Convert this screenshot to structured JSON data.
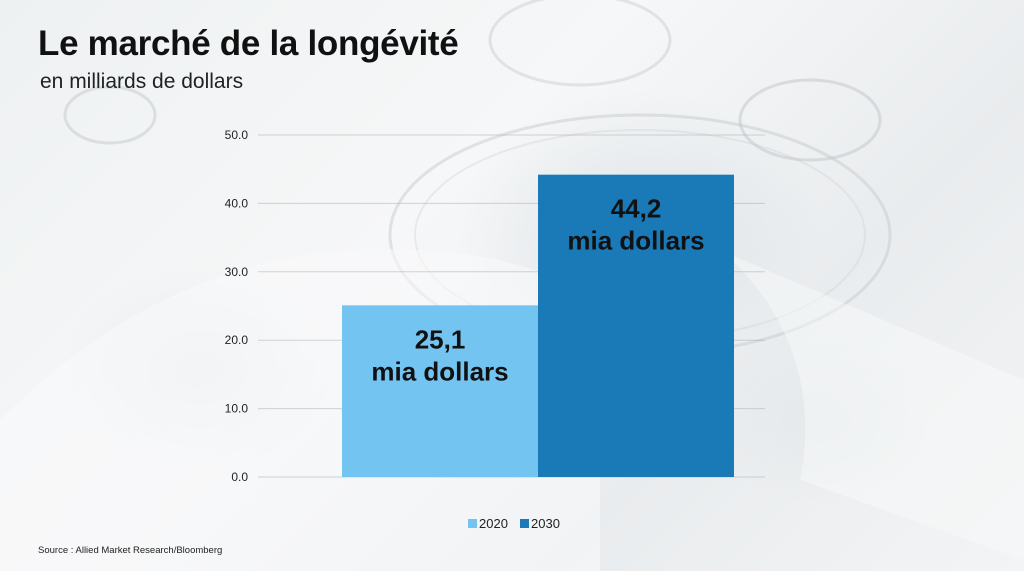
{
  "header": {
    "title": "Le marché de la longévité",
    "subtitle": "en milliards de dollars"
  },
  "footer": {
    "source": "Source : Allied Market Research/Bloomberg"
  },
  "colors": {
    "series_2020": "#74C4F2",
    "series_2030": "#1A7AB8"
  },
  "chart_data": {
    "type": "bar",
    "title": "",
    "xlabel": "",
    "ylabel": "",
    "ylim": [
      0,
      50
    ],
    "yticks": [
      "0.0",
      "10.0",
      "20.0",
      "30.0",
      "40.0",
      "50.0"
    ],
    "grid": true,
    "legend_position": "bottom",
    "series": [
      {
        "name": "2020",
        "value": 25.1,
        "label_line1": "25,1",
        "label_line2": "mia dollars",
        "color": "#74C4F2"
      },
      {
        "name": "2030",
        "value": 44.2,
        "label_line1": "44,2",
        "label_line2": "mia dollars",
        "color": "#1A7AB8"
      }
    ]
  }
}
